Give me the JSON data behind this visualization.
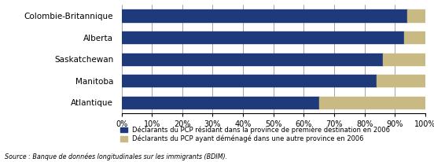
{
  "categories": [
    "Atlantique",
    "Manitoba",
    "Saskatchewan",
    "Alberta",
    "Colombie-Britannique"
  ],
  "values_blue": [
    65,
    84,
    86,
    93,
    94
  ],
  "values_beige": [
    35,
    16,
    14,
    7,
    6
  ],
  "color_blue": "#1F3A7A",
  "color_beige": "#C8BA82",
  "legend_blue": "Déclarants du PCP résidant dans la province de première destination en 2006",
  "legend_beige": "Déclarants du PCP ayant déménagé dans une autre province en 2006",
  "source": "Source : Banque de données longitudinales sur les immigrants (BDIM).",
  "xlim": [
    0,
    100
  ],
  "xticks": [
    0,
    10,
    20,
    30,
    40,
    50,
    60,
    70,
    80,
    90,
    100
  ],
  "xtick_labels": [
    "0%",
    "10%",
    "20%",
    "30%",
    "40%",
    "50%",
    "60%",
    "70%",
    "80%",
    "90%",
    "100%"
  ],
  "bar_height": 0.55,
  "figsize": [
    5.52,
    2.06
  ],
  "dpi": 100,
  "background_color": "#FFFFFF"
}
